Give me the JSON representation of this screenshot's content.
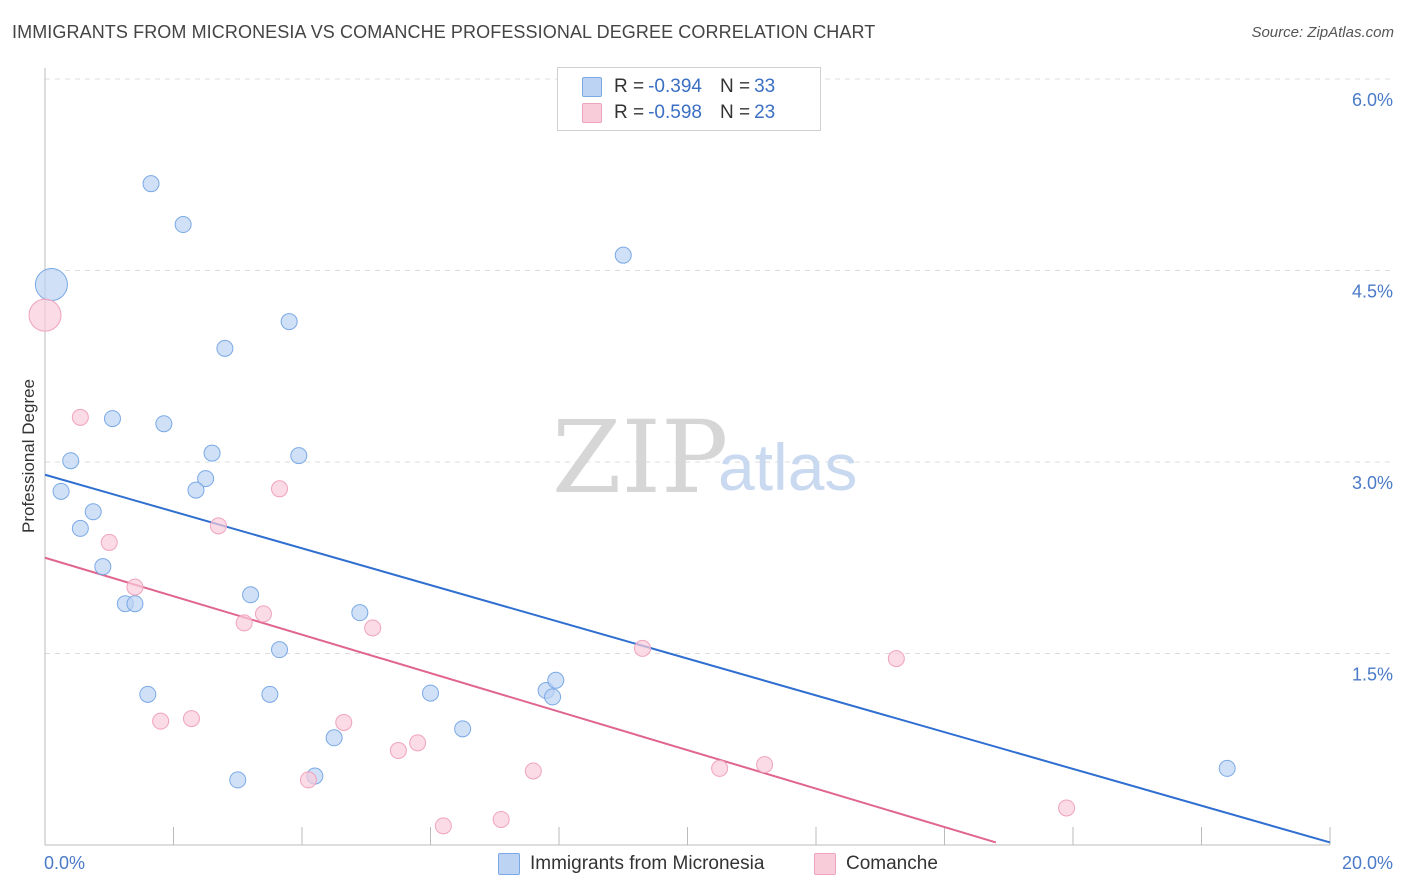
{
  "title": "IMMIGRANTS FROM MICRONESIA VS COMANCHE PROFESSIONAL DEGREE CORRELATION CHART",
  "source": "Source: ZipAtlas.com",
  "watermark": {
    "zip": "ZIP",
    "atlas": "atlas"
  },
  "legend_top": [
    {
      "r_label": "R = ",
      "r_value": "-0.394",
      "n_label": "N = ",
      "n_value": "33"
    },
    {
      "r_label": "R = ",
      "r_value": "-0.598",
      "n_label": "N = ",
      "n_value": "23"
    }
  ],
  "chart_data": {
    "type": "scatter",
    "title": "IMMIGRANTS FROM MICRONESIA VS COMANCHE PROFESSIONAL DEGREE CORRELATION CHART",
    "xlabel": "",
    "ylabel": "Professional Degree",
    "xlim": [
      0,
      20
    ],
    "ylim": [
      0,
      6.3
    ],
    "x_tick_labels": [
      "0.0%",
      "20.0%"
    ],
    "y_ticks": [
      1.5,
      3.0,
      4.5,
      6.0
    ],
    "y_tick_labels": [
      "1.5%",
      "3.0%",
      "4.5%",
      "6.0%"
    ],
    "grid": true,
    "legend_position": "bottom",
    "series": [
      {
        "name": "Immigrants from Micronesia",
        "color": "#7aa9e6",
        "fill": "#bcd3f3",
        "trend_color": "#2f6fcf",
        "trend": {
          "x": [
            0,
            20
          ],
          "y": [
            2.9,
            0.02
          ]
        },
        "points": [
          {
            "x": 0.1,
            "y": 4.39,
            "big": true
          },
          {
            "x": 1.65,
            "y": 5.18
          },
          {
            "x": 2.15,
            "y": 4.86
          },
          {
            "x": 3.8,
            "y": 4.1
          },
          {
            "x": 2.8,
            "y": 3.89
          },
          {
            "x": 9.0,
            "y": 4.62
          },
          {
            "x": 1.05,
            "y": 3.34
          },
          {
            "x": 1.85,
            "y": 3.3
          },
          {
            "x": 0.4,
            "y": 3.01
          },
          {
            "x": 2.6,
            "y": 3.07
          },
          {
            "x": 3.95,
            "y": 3.05
          },
          {
            "x": 0.25,
            "y": 2.77
          },
          {
            "x": 2.5,
            "y": 2.87
          },
          {
            "x": 2.35,
            "y": 2.78
          },
          {
            "x": 0.75,
            "y": 2.61
          },
          {
            "x": 0.55,
            "y": 2.48
          },
          {
            "x": 0.9,
            "y": 2.18
          },
          {
            "x": 1.25,
            "y": 1.89
          },
          {
            "x": 1.4,
            "y": 1.89
          },
          {
            "x": 3.2,
            "y": 1.96
          },
          {
            "x": 4.9,
            "y": 1.82
          },
          {
            "x": 3.65,
            "y": 1.53
          },
          {
            "x": 1.6,
            "y": 1.18
          },
          {
            "x": 3.5,
            "y": 1.18
          },
          {
            "x": 6.0,
            "y": 1.19
          },
          {
            "x": 7.8,
            "y": 1.21
          },
          {
            "x": 7.95,
            "y": 1.29
          },
          {
            "x": 7.9,
            "y": 1.16
          },
          {
            "x": 6.5,
            "y": 0.91
          },
          {
            "x": 4.5,
            "y": 0.84
          },
          {
            "x": 3.0,
            "y": 0.51
          },
          {
            "x": 4.2,
            "y": 0.54
          },
          {
            "x": 18.4,
            "y": 0.6
          }
        ]
      },
      {
        "name": "Comanche",
        "color": "#f0a3bd",
        "fill": "#f9ccda",
        "trend_color": "#e0668f",
        "trend": {
          "x": [
            0,
            14.8
          ],
          "y": [
            2.25,
            0.02
          ]
        },
        "points": [
          {
            "x": 0.0,
            "y": 4.15,
            "big": true
          },
          {
            "x": 0.55,
            "y": 3.35
          },
          {
            "x": 3.65,
            "y": 2.79
          },
          {
            "x": 2.7,
            "y": 2.5
          },
          {
            "x": 1.0,
            "y": 2.37
          },
          {
            "x": 1.4,
            "y": 2.02
          },
          {
            "x": 3.4,
            "y": 1.81
          },
          {
            "x": 3.1,
            "y": 1.74
          },
          {
            "x": 5.1,
            "y": 1.7
          },
          {
            "x": 9.3,
            "y": 1.54
          },
          {
            "x": 13.25,
            "y": 1.46
          },
          {
            "x": 1.8,
            "y": 0.97
          },
          {
            "x": 2.28,
            "y": 0.99
          },
          {
            "x": 4.65,
            "y": 0.96
          },
          {
            "x": 5.5,
            "y": 0.74
          },
          {
            "x": 5.8,
            "y": 0.8
          },
          {
            "x": 7.6,
            "y": 0.58
          },
          {
            "x": 10.5,
            "y": 0.6
          },
          {
            "x": 11.2,
            "y": 0.63
          },
          {
            "x": 4.1,
            "y": 0.51
          },
          {
            "x": 7.1,
            "y": 0.2
          },
          {
            "x": 6.2,
            "y": 0.15
          },
          {
            "x": 15.9,
            "y": 0.29
          }
        ]
      }
    ]
  }
}
